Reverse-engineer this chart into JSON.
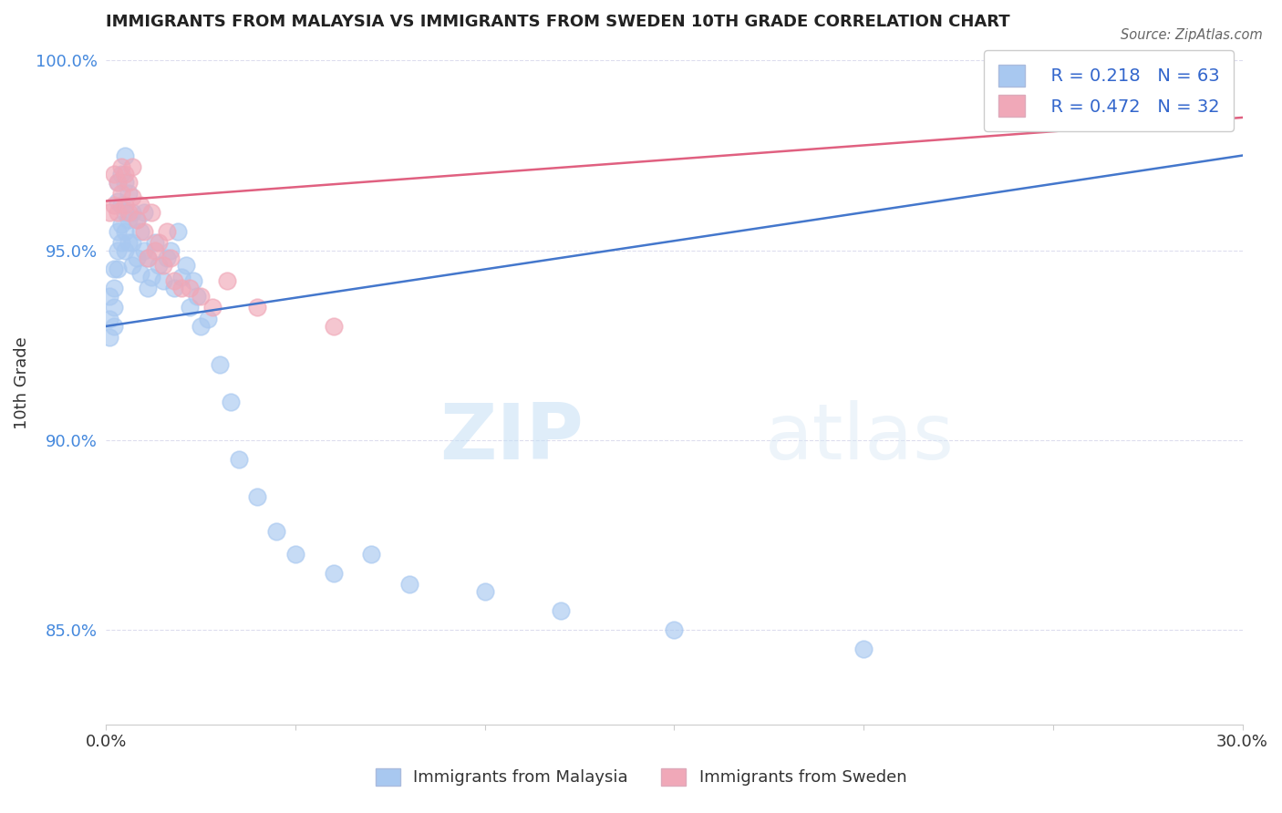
{
  "title": "IMMIGRANTS FROM MALAYSIA VS IMMIGRANTS FROM SWEDEN 10TH GRADE CORRELATION CHART",
  "source": "Source: ZipAtlas.com",
  "ylabel": "10th Grade",
  "xlim": [
    0.0,
    0.3
  ],
  "ylim": [
    0.825,
    1.005
  ],
  "xticks": [
    0.0,
    0.05,
    0.1,
    0.15,
    0.2,
    0.25,
    0.3
  ],
  "xticklabels": [
    "0.0%",
    "",
    "",
    "",
    "",
    "",
    "30.0%"
  ],
  "yticks": [
    0.85,
    0.9,
    0.95,
    1.0
  ],
  "yticklabels": [
    "85.0%",
    "90.0%",
    "95.0%",
    "100.0%"
  ],
  "malaysia_color": "#a8c8f0",
  "sweden_color": "#f0a8b8",
  "malaysia_line_color": "#4477cc",
  "sweden_line_color": "#e06080",
  "legend_r_malaysia": "R = 0.218",
  "legend_n_malaysia": "N = 63",
  "legend_r_sweden": "R = 0.472",
  "legend_n_sweden": "N = 32",
  "malaysia_x": [
    0.001,
    0.001,
    0.001,
    0.002,
    0.002,
    0.002,
    0.002,
    0.003,
    0.003,
    0.003,
    0.003,
    0.003,
    0.004,
    0.004,
    0.004,
    0.004,
    0.005,
    0.005,
    0.005,
    0.005,
    0.005,
    0.006,
    0.006,
    0.006,
    0.007,
    0.007,
    0.007,
    0.008,
    0.008,
    0.009,
    0.009,
    0.01,
    0.01,
    0.011,
    0.011,
    0.012,
    0.013,
    0.014,
    0.015,
    0.016,
    0.017,
    0.018,
    0.019,
    0.02,
    0.021,
    0.022,
    0.023,
    0.024,
    0.025,
    0.027,
    0.03,
    0.033,
    0.035,
    0.04,
    0.045,
    0.05,
    0.06,
    0.07,
    0.08,
    0.1,
    0.12,
    0.15,
    0.2
  ],
  "malaysia_y": [
    0.938,
    0.932,
    0.927,
    0.945,
    0.94,
    0.935,
    0.93,
    0.968,
    0.963,
    0.955,
    0.95,
    0.945,
    0.97,
    0.962,
    0.957,
    0.952,
    0.975,
    0.968,
    0.96,
    0.955,
    0.95,
    0.965,
    0.958,
    0.952,
    0.96,
    0.952,
    0.946,
    0.958,
    0.948,
    0.955,
    0.944,
    0.96,
    0.95,
    0.948,
    0.94,
    0.943,
    0.952,
    0.946,
    0.942,
    0.948,
    0.95,
    0.94,
    0.955,
    0.943,
    0.946,
    0.935,
    0.942,
    0.938,
    0.93,
    0.932,
    0.92,
    0.91,
    0.895,
    0.885,
    0.876,
    0.87,
    0.865,
    0.87,
    0.862,
    0.86,
    0.855,
    0.85,
    0.845
  ],
  "sweden_x": [
    0.001,
    0.002,
    0.002,
    0.003,
    0.003,
    0.004,
    0.004,
    0.005,
    0.005,
    0.006,
    0.006,
    0.007,
    0.007,
    0.008,
    0.009,
    0.01,
    0.011,
    0.012,
    0.013,
    0.014,
    0.015,
    0.016,
    0.017,
    0.018,
    0.02,
    0.022,
    0.025,
    0.028,
    0.032,
    0.04,
    0.06,
    0.28
  ],
  "sweden_y": [
    0.96,
    0.97,
    0.962,
    0.968,
    0.96,
    0.972,
    0.965,
    0.97,
    0.962,
    0.968,
    0.96,
    0.972,
    0.964,
    0.958,
    0.962,
    0.955,
    0.948,
    0.96,
    0.95,
    0.952,
    0.946,
    0.955,
    0.948,
    0.942,
    0.94,
    0.94,
    0.938,
    0.935,
    0.942,
    0.935,
    0.93,
    0.999
  ],
  "watermark_zip": "ZIP",
  "watermark_atlas": "atlas",
  "grid_color": "#ddddee",
  "background_color": "#ffffff"
}
